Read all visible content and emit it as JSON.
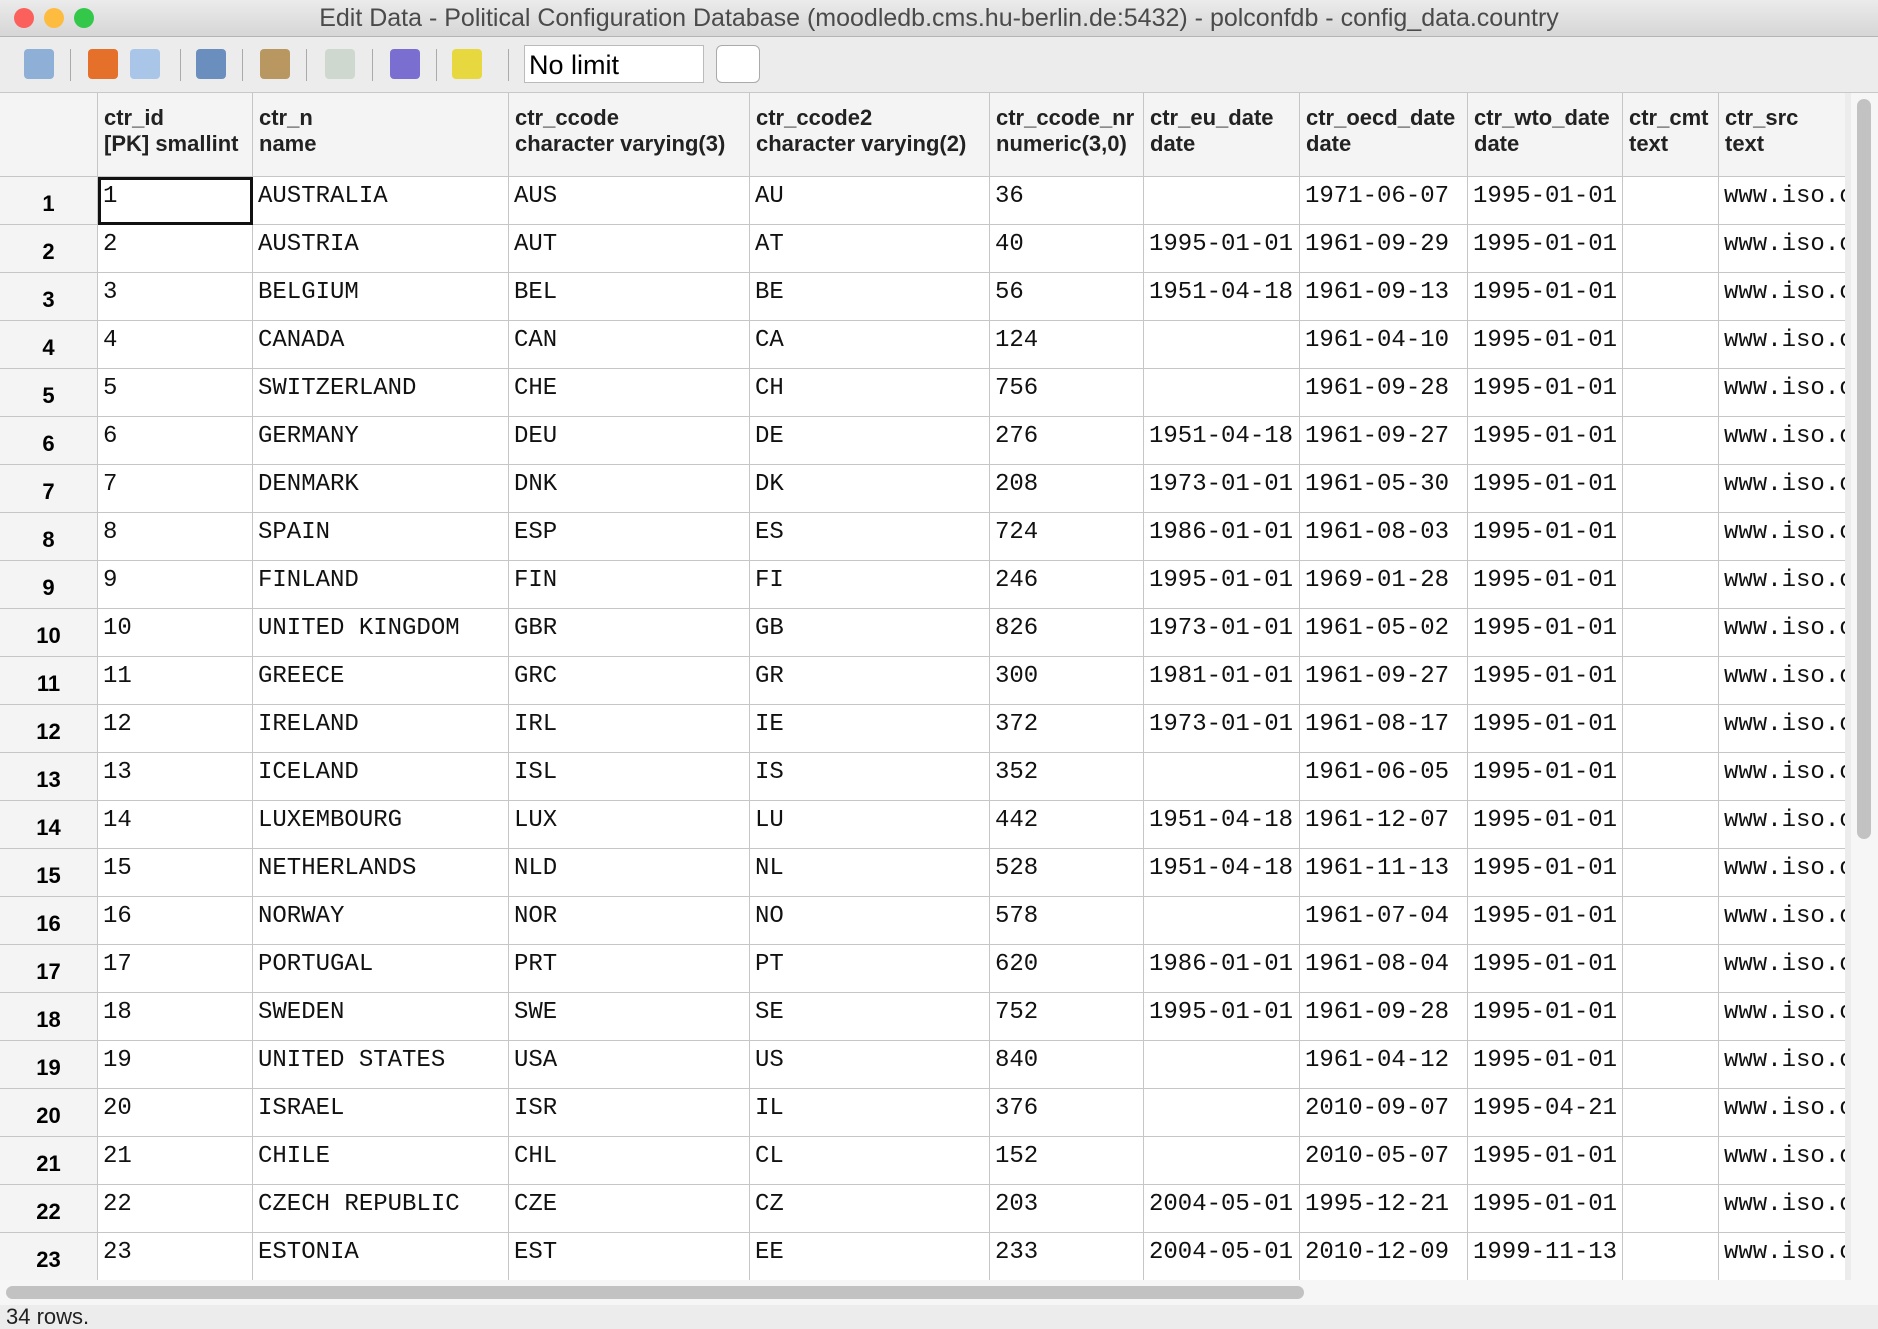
{
  "window": {
    "title": "Edit Data - Political Configuration Database (moodledb.cms.hu-berlin.de:5432) - polconfdb - config_data.country"
  },
  "toolbar": {
    "limit": "No limit"
  },
  "table": {
    "columns": [
      [
        "ctr_id",
        "[PK] smallint"
      ],
      [
        "ctr_n",
        "name"
      ],
      [
        "ctr_ccode",
        "character varying(3)"
      ],
      [
        "ctr_ccode2",
        "character varying(2)"
      ],
      [
        "ctr_ccode_nr",
        "numeric(3,0)"
      ],
      [
        "ctr_eu_date",
        "date"
      ],
      [
        "ctr_oecd_date",
        "date"
      ],
      [
        "ctr_wto_date",
        "date"
      ],
      [
        "ctr_cmt",
        "text"
      ],
      [
        "ctr_src",
        "text"
      ]
    ],
    "row_numbers": [
      1,
      2,
      3,
      4,
      5,
      6,
      7,
      8,
      9,
      10,
      11,
      12,
      13,
      14,
      15,
      16,
      17,
      18,
      19,
      20,
      21,
      22,
      23
    ],
    "rows": [
      [
        1,
        "AUSTRALIA",
        "AUS",
        "AU",
        36,
        null,
        "1971-06-07",
        "1995-01-01",
        null,
        "www.iso.org"
      ],
      [
        2,
        "AUSTRIA",
        "AUT",
        "AT",
        40,
        "1995-01-01",
        "1961-09-29",
        "1995-01-01",
        null,
        "www.iso.org"
      ],
      [
        3,
        "BELGIUM",
        "BEL",
        "BE",
        56,
        "1951-04-18",
        "1961-09-13",
        "1995-01-01",
        null,
        "www.iso.org"
      ],
      [
        4,
        "CANADA",
        "CAN",
        "CA",
        124,
        null,
        "1961-04-10",
        "1995-01-01",
        null,
        "www.iso.org"
      ],
      [
        5,
        "SWITZERLAND",
        "CHE",
        "CH",
        756,
        null,
        "1961-09-28",
        "1995-01-01",
        null,
        "www.iso.org"
      ],
      [
        6,
        "GERMANY",
        "DEU",
        "DE",
        276,
        "1951-04-18",
        "1961-09-27",
        "1995-01-01",
        null,
        "www.iso.org"
      ],
      [
        7,
        "DENMARK",
        "DNK",
        "DK",
        208,
        "1973-01-01",
        "1961-05-30",
        "1995-01-01",
        null,
        "www.iso.org"
      ],
      [
        8,
        "SPAIN",
        "ESP",
        "ES",
        724,
        "1986-01-01",
        "1961-08-03",
        "1995-01-01",
        null,
        "www.iso.org"
      ],
      [
        9,
        "FINLAND",
        "FIN",
        "FI",
        246,
        "1995-01-01",
        "1969-01-28",
        "1995-01-01",
        null,
        "www.iso.org"
      ],
      [
        10,
        "UNITED KINGDOM",
        "GBR",
        "GB",
        826,
        "1973-01-01",
        "1961-05-02",
        "1995-01-01",
        null,
        "www.iso.org"
      ],
      [
        11,
        "GREECE",
        "GRC",
        "GR",
        300,
        "1981-01-01",
        "1961-09-27",
        "1995-01-01",
        null,
        "www.iso.org"
      ],
      [
        12,
        "IRELAND",
        "IRL",
        "IE",
        372,
        "1973-01-01",
        "1961-08-17",
        "1995-01-01",
        null,
        "www.iso.org"
      ],
      [
        13,
        "ICELAND",
        "ISL",
        "IS",
        352,
        null,
        "1961-06-05",
        "1995-01-01",
        null,
        "www.iso.org"
      ],
      [
        14,
        "LUXEMBOURG",
        "LUX",
        "LU",
        442,
        "1951-04-18",
        "1961-12-07",
        "1995-01-01",
        null,
        "www.iso.org"
      ],
      [
        15,
        "NETHERLANDS",
        "NLD",
        "NL",
        528,
        "1951-04-18",
        "1961-11-13",
        "1995-01-01",
        null,
        "www.iso.org"
      ],
      [
        16,
        "NORWAY",
        "NOR",
        "NO",
        578,
        null,
        "1961-07-04",
        "1995-01-01",
        null,
        "www.iso.org"
      ],
      [
        17,
        "PORTUGAL",
        "PRT",
        "PT",
        620,
        "1986-01-01",
        "1961-08-04",
        "1995-01-01",
        null,
        "www.iso.org"
      ],
      [
        18,
        "SWEDEN",
        "SWE",
        "SE",
        752,
        "1995-01-01",
        "1961-09-28",
        "1995-01-01",
        null,
        "www.iso.org"
      ],
      [
        19,
        "UNITED STATES",
        "USA",
        "US",
        840,
        null,
        "1961-04-12",
        "1995-01-01",
        null,
        "www.iso.org"
      ],
      [
        20,
        "ISRAEL",
        "ISR",
        "IL",
        376,
        null,
        "2010-09-07",
        "1995-04-21",
        null,
        "www.iso.org"
      ],
      [
        21,
        "CHILE",
        "CHL",
        "CL",
        152,
        null,
        "2010-05-07",
        "1995-01-01",
        null,
        "www.iso.org"
      ],
      [
        22,
        "CZECH REPUBLIC",
        "CZE",
        "CZ",
        203,
        "2004-05-01",
        "1995-12-21",
        "1995-01-01",
        null,
        "www.iso.org"
      ],
      [
        23,
        "ESTONIA",
        "EST",
        "EE",
        233,
        "2004-05-01",
        "2010-12-09",
        "1999-11-13",
        null,
        "www.iso.org"
      ]
    ]
  },
  "status": "34 rows."
}
